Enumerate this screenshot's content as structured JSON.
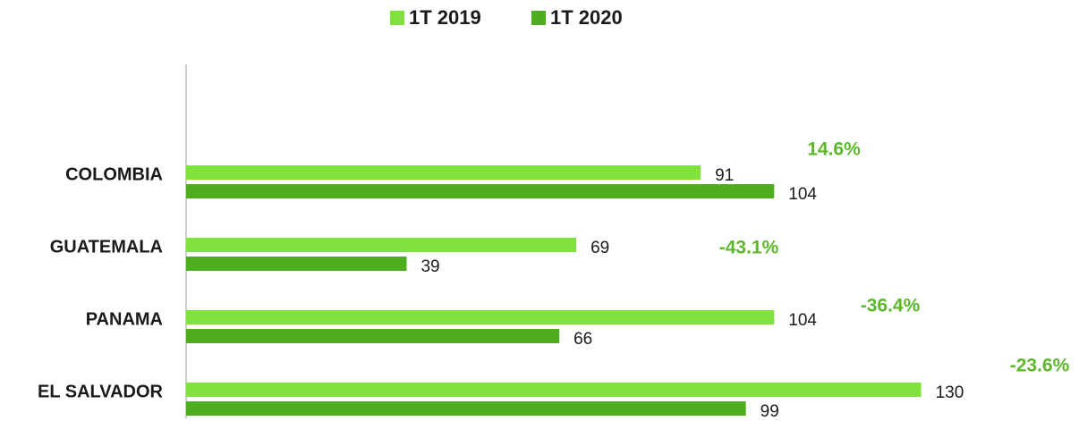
{
  "chart_data": {
    "type": "bar",
    "orientation": "horizontal",
    "categories": [
      "COLOMBIA",
      "GUATEMALA",
      "PANAMA",
      "EL SALVADOR"
    ],
    "series": [
      {
        "name": "1T 2019",
        "color": "#80e33d",
        "values": [
          91,
          69,
          104,
          130
        ]
      },
      {
        "name": "1T 2020",
        "color": "#4fae20",
        "values": [
          104,
          39,
          66,
          99
        ]
      }
    ],
    "annotations": [
      "14.6%",
      "-43.1%",
      "-36.4%",
      "-23.6%"
    ],
    "annotation_color": "#5cb82a",
    "legend": "top"
  }
}
